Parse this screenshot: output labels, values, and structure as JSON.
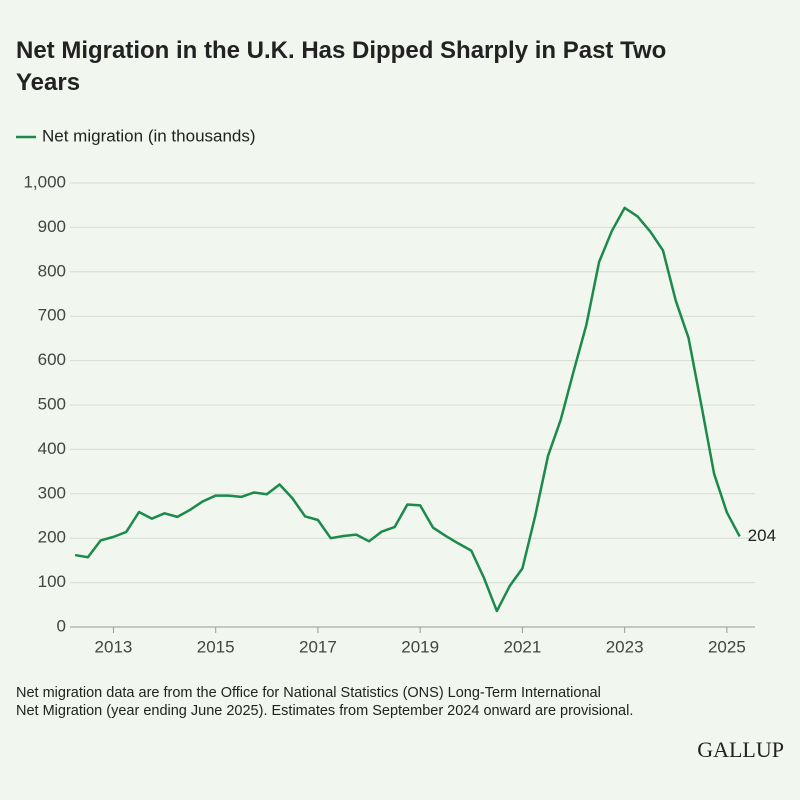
{
  "chart_data": {
    "type": "line",
    "title": "Net Migration in the U.K. Has Dipped Sharply in Past Two Years",
    "note": "Net migration data are from the Office for National Statistics (ONS) Long-Term International Net Migration (year ending June 2025). Estimates from September 2024 onward are provisional.",
    "logo": "GALLUP",
    "x": [
      2012.25,
      2012.5,
      2012.75,
      2013,
      2013.25,
      2013.5,
      2013.75,
      2014,
      2014.25,
      2014.5,
      2014.75,
      2015,
      2015.25,
      2015.5,
      2015.75,
      2016,
      2016.25,
      2016.5,
      2016.75,
      2017,
      2017.25,
      2017.5,
      2017.75,
      2018,
      2018.25,
      2018.5,
      2018.75,
      2019,
      2019.25,
      2019.5,
      2019.75,
      2020,
      2020.25,
      2020.5,
      2020.75,
      2021,
      2021.25,
      2021.5,
      2021.75,
      2022,
      2022.25,
      2022.5,
      2022.75,
      2023,
      2023.25,
      2023.5,
      2023.75,
      2024,
      2024.25,
      2024.5,
      2024.75,
      2025,
      2025.25
    ],
    "series": [
      {
        "name": "Net migration (in thousands)",
        "color": "#1b8a4b",
        "values": [
          162,
          157,
          195,
          203,
          214,
          259,
          244,
          256,
          248,
          264,
          283,
          296,
          296,
          293,
          303,
          299,
          321,
          290,
          249,
          241,
          200,
          205,
          208,
          193,
          215,
          225,
          276,
          274,
          224,
          205,
          188,
          172,
          110,
          36,
          92,
          132,
          250,
          385,
          467,
          575,
          680,
          822,
          892,
          944,
          925,
          891,
          848,
          735,
          651,
          500,
          345,
          258,
          204
        ]
      }
    ],
    "xlim": [
      2012.15,
      2025.55
    ],
    "xticks": [
      2013,
      2015,
      2017,
      2019,
      2021,
      2023,
      2025
    ],
    "ylim": [
      0,
      1000
    ],
    "yticks": [
      0,
      100,
      200,
      300,
      400,
      500,
      600,
      700,
      800,
      900,
      {
        "value": 1000,
        "label": "1,000"
      }
    ],
    "grid": true
  }
}
